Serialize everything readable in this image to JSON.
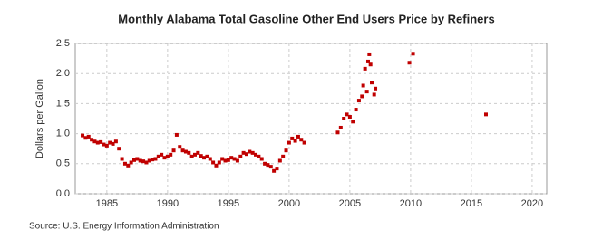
{
  "chart_data": {
    "type": "scatter",
    "title": "Monthly Alabama Total Gasoline Other End Users Price by Refiners",
    "y_label": "Dollars per Gallon",
    "source": "Source: U.S. Energy Information Administration",
    "color": "#c00000",
    "grid": true,
    "xlim": [
      1982.4,
      2021.2
    ],
    "xticks": [
      1985,
      1990,
      1995,
      2000,
      2005,
      2010,
      2015,
      2020
    ],
    "ylim": [
      0,
      2.5
    ],
    "yticks": [
      {
        "value": 0,
        "label": "0.0"
      },
      0.5,
      {
        "value": 1,
        "label": "1.0"
      },
      1.5,
      {
        "value": 2,
        "label": "2.0"
      },
      2.5
    ],
    "x": [
      1983.0,
      1983.25,
      1983.5,
      1983.75,
      1984.0,
      1984.25,
      1984.5,
      1984.75,
      1985.0,
      1985.25,
      1985.5,
      1985.75,
      1986.0,
      1986.25,
      1986.5,
      1986.75,
      1987.0,
      1987.25,
      1987.5,
      1987.75,
      1988.0,
      1988.25,
      1988.5,
      1988.75,
      1989.0,
      1989.25,
      1989.5,
      1989.75,
      1990.0,
      1990.25,
      1990.5,
      1990.75,
      1991.0,
      1991.25,
      1991.5,
      1991.75,
      1992.0,
      1992.25,
      1992.5,
      1992.75,
      1993.0,
      1993.25,
      1993.5,
      1993.75,
      1994.0,
      1994.25,
      1994.5,
      1994.75,
      1995.0,
      1995.25,
      1995.5,
      1995.75,
      1996.0,
      1996.25,
      1996.5,
      1996.75,
      1997.0,
      1997.25,
      1997.5,
      1997.75,
      1998.0,
      1998.25,
      1998.5,
      1998.75,
      1999.0,
      1999.25,
      1999.5,
      1999.75,
      2000.0,
      2000.25,
      2000.5,
      2000.75,
      2001.0,
      2001.25,
      2004.0,
      2004.25,
      2004.5,
      2004.75,
      2005.0,
      2005.25,
      2005.5,
      2005.75,
      2006.0,
      2006.1,
      2006.25,
      2006.4,
      2006.5,
      2006.6,
      2006.7,
      2006.8,
      2007.0,
      2007.1,
      2009.9,
      2010.2,
      2016.2
    ],
    "values": [
      0.97,
      0.93,
      0.95,
      0.9,
      0.87,
      0.85,
      0.86,
      0.82,
      0.8,
      0.85,
      0.83,
      0.87,
      0.75,
      0.58,
      0.5,
      0.47,
      0.52,
      0.56,
      0.58,
      0.55,
      0.54,
      0.52,
      0.55,
      0.57,
      0.58,
      0.62,
      0.65,
      0.6,
      0.62,
      0.65,
      0.72,
      0.98,
      0.78,
      0.72,
      0.7,
      0.68,
      0.62,
      0.65,
      0.68,
      0.63,
      0.6,
      0.62,
      0.58,
      0.52,
      0.47,
      0.52,
      0.58,
      0.55,
      0.56,
      0.6,
      0.58,
      0.55,
      0.62,
      0.68,
      0.66,
      0.7,
      0.68,
      0.65,
      0.62,
      0.58,
      0.5,
      0.48,
      0.45,
      0.38,
      0.42,
      0.55,
      0.62,
      0.72,
      0.85,
      0.92,
      0.88,
      0.95,
      0.9,
      0.85,
      1.02,
      1.1,
      1.25,
      1.32,
      1.28,
      1.2,
      1.4,
      1.55,
      1.62,
      1.8,
      2.08,
      1.7,
      2.2,
      2.32,
      2.15,
      1.85,
      1.65,
      1.75,
      2.18,
      2.33,
      1.32
    ]
  }
}
